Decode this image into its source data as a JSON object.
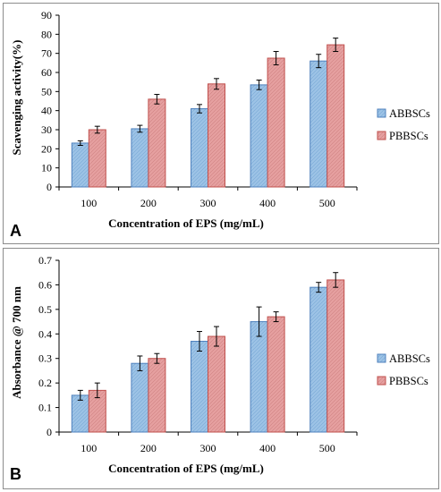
{
  "colors": {
    "series1": "#9dc3e6",
    "series1_stroke": "#4f81bd",
    "series2": "#e6a0a0",
    "series2_stroke": "#c0504d",
    "axis": "#000000",
    "border": "#8c8c8c"
  },
  "chart_data": [
    {
      "panel_label": "A",
      "type": "bar",
      "xlabel": "Concentration of EPS (mg/mL)",
      "ylabel": "Scavenging activity(%)",
      "categories": [
        "100",
        "200",
        "300",
        "400",
        "500"
      ],
      "ylim": [
        0,
        90
      ],
      "yticks": [
        "0",
        "10",
        "20",
        "30",
        "40",
        "50",
        "60",
        "70",
        "80",
        "90"
      ],
      "grid": false,
      "legend_position": "right",
      "series": [
        {
          "name": "ABBSCs",
          "values": [
            23,
            30.5,
            41,
            53.5,
            66
          ],
          "errors": [
            1.2,
            1.8,
            2.2,
            2.5,
            3.5
          ]
        },
        {
          "name": "PBBSCs",
          "values": [
            30,
            46,
            54,
            67.5,
            74.5
          ],
          "errors": [
            1.8,
            2.5,
            2.8,
            3.5,
            3.5
          ]
        }
      ]
    },
    {
      "panel_label": "B",
      "type": "bar",
      "xlabel": "Concentration of EPS (mg/mL)",
      "ylabel": "Absorbance @ 700 nm",
      "categories": [
        "100",
        "200",
        "300",
        "400",
        "500"
      ],
      "ylim": [
        0,
        0.7
      ],
      "yticks": [
        "0",
        "0.1",
        "0.2",
        "0.3",
        "0.4",
        "0.5",
        "0.6",
        "0.7"
      ],
      "grid": false,
      "legend_position": "right",
      "series": [
        {
          "name": "ABBSCs",
          "values": [
            0.15,
            0.28,
            0.37,
            0.45,
            0.59
          ],
          "errors": [
            0.02,
            0.03,
            0.04,
            0.06,
            0.02
          ]
        },
        {
          "name": "PBBSCs",
          "values": [
            0.17,
            0.3,
            0.39,
            0.47,
            0.62
          ],
          "errors": [
            0.03,
            0.02,
            0.04,
            0.02,
            0.03
          ]
        }
      ]
    }
  ]
}
